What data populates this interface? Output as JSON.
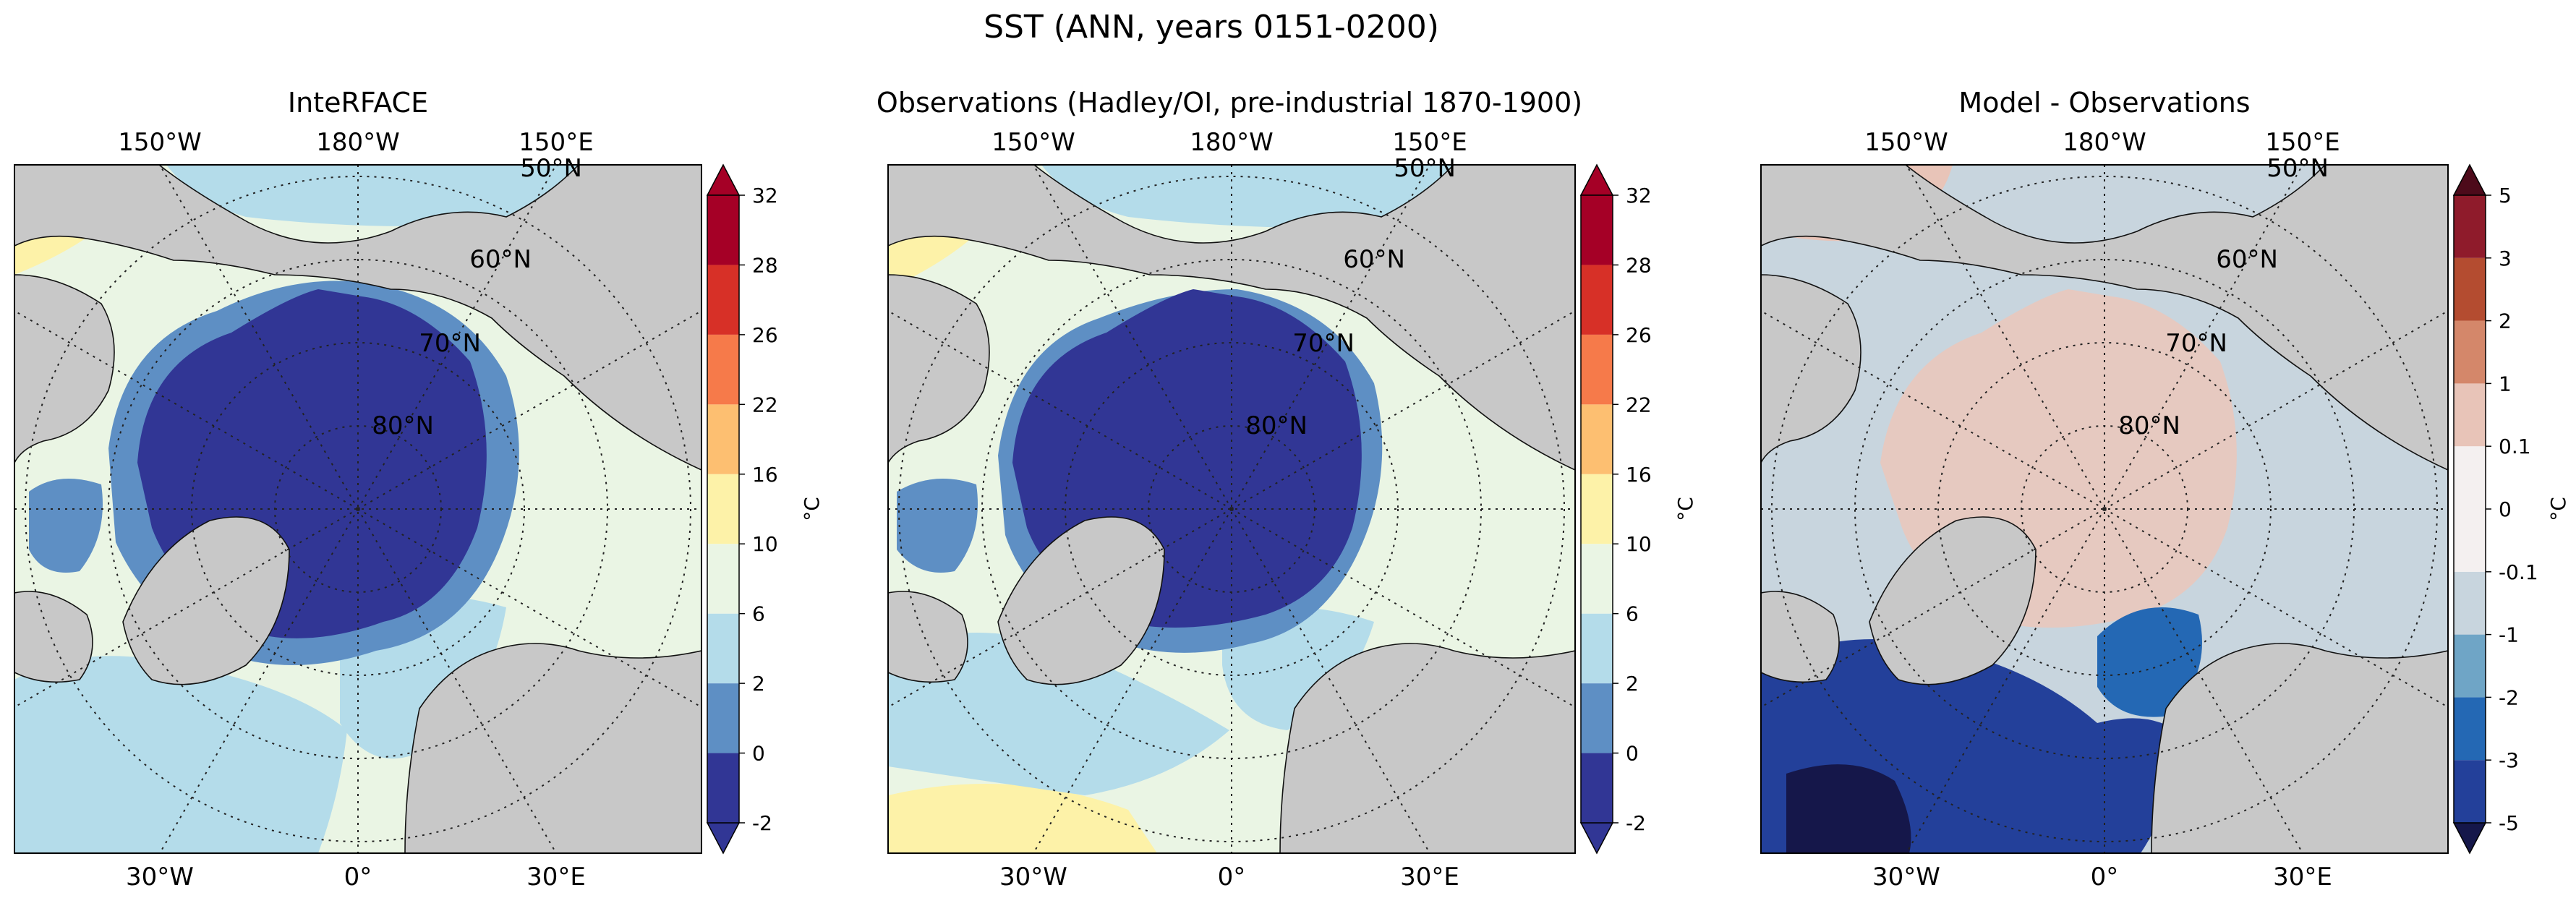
{
  "figure": {
    "title": "SST (ANN, years 0151-0200)"
  },
  "chart_data": [
    {
      "type": "heatmap",
      "title": "InteRFACE",
      "projection": "north polar stereographic",
      "top_lon_labels": [
        "150°W",
        "180°W",
        "150°E"
      ],
      "bottom_lon_labels": [
        "30°W",
        "0°",
        "30°E"
      ],
      "lat_labels": [
        "50°N",
        "60°N",
        "70°N",
        "80°N"
      ],
      "colorbar": {
        "label": "°C",
        "extend": "both",
        "levels": [
          -2,
          0,
          2,
          6,
          10,
          16,
          22,
          26,
          28,
          32
        ],
        "tick_labels": [
          "-2",
          "0",
          "2",
          "6",
          "10",
          "16",
          "22",
          "26",
          "28",
          "32"
        ],
        "colors": [
          "#313695",
          "#5e8fc4",
          "#b4dcea",
          "#eaf5e4",
          "#fdf2a8",
          "#fdbf71",
          "#f67a4a",
          "#d73027",
          "#a50026"
        ],
        "under_color": "#313695",
        "over_color": "#a50026"
      },
      "map_colors": {
        "land": "#c8c8c8",
        "ice_region": "#313695"
      },
      "grid": true
    },
    {
      "type": "heatmap",
      "title": "Observations (Hadley/OI, pre-industrial 1870-1900)",
      "projection": "north polar stereographic",
      "top_lon_labels": [
        "150°W",
        "180°W",
        "150°E"
      ],
      "bottom_lon_labels": [
        "30°W",
        "0°",
        "30°E"
      ],
      "lat_labels": [
        "50°N",
        "60°N",
        "70°N",
        "80°N"
      ],
      "colorbar": {
        "label": "°C",
        "extend": "both",
        "levels": [
          -2,
          0,
          2,
          6,
          10,
          16,
          22,
          26,
          28,
          32
        ],
        "tick_labels": [
          "-2",
          "0",
          "2",
          "6",
          "10",
          "16",
          "22",
          "26",
          "28",
          "32"
        ],
        "colors": [
          "#313695",
          "#5e8fc4",
          "#b4dcea",
          "#eaf5e4",
          "#fdf2a8",
          "#fdbf71",
          "#f67a4a",
          "#d73027",
          "#a50026"
        ],
        "under_color": "#313695",
        "over_color": "#a50026"
      },
      "map_colors": {
        "land": "#c8c8c8",
        "ice_region": "#313695"
      },
      "grid": true
    },
    {
      "type": "heatmap",
      "title": "Model - Observations",
      "projection": "north polar stereographic",
      "top_lon_labels": [
        "150°W",
        "180°W",
        "150°E"
      ],
      "bottom_lon_labels": [
        "30°W",
        "0°",
        "30°E"
      ],
      "lat_labels": [
        "50°N",
        "60°N",
        "70°N",
        "80°N"
      ],
      "colorbar": {
        "label": "°C",
        "extend": "both",
        "levels": [
          -5,
          -3,
          -2,
          -1,
          -0.1,
          0,
          0.1,
          1,
          2,
          3,
          5
        ],
        "tick_labels": [
          "-5",
          "-3",
          "-2",
          "-1",
          "-0.1",
          "0",
          "0.1",
          "1",
          "2",
          "3",
          "5"
        ],
        "colors": [
          "#23409a",
          "#2468b4",
          "#6fa5c6",
          "#c8d5de",
          "#f4f0f0",
          "#f4f0f0",
          "#e8c4b8",
          "#d4876a",
          "#b44c30",
          "#8f1b2b"
        ],
        "under_color": "#15174a",
        "over_color": "#4d0a1a"
      },
      "map_colors": {
        "land": "#c8c8c8",
        "ice_region": "#e6c9c0"
      },
      "grid": true
    }
  ]
}
